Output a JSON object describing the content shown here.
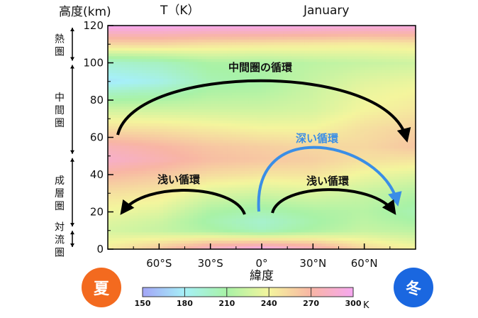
{
  "chart_data": {
    "type": "heatmap",
    "title_left": "T（K）",
    "title_right": "January",
    "ylabel": "高度(km)",
    "xlabel": "緯度",
    "xlim": [
      -90,
      90
    ],
    "ylim": [
      0,
      120
    ],
    "x_ticks": [
      {
        "value": -60,
        "label": "60°S"
      },
      {
        "value": -30,
        "label": "30°S"
      },
      {
        "value": 0,
        "label": "0°"
      },
      {
        "value": 30,
        "label": "30°N"
      },
      {
        "value": 60,
        "label": "60°N"
      }
    ],
    "y_ticks": [
      0,
      20,
      40,
      60,
      80,
      100,
      120
    ],
    "layers": [
      {
        "label": "熱圏",
        "from": 100,
        "to": 120
      },
      {
        "label": "中間圏",
        "from": 50,
        "to": 100
      },
      {
        "label": "成層圏",
        "from": 11,
        "to": 50
      },
      {
        "label": "対流圏",
        "from": 0,
        "to": 11
      }
    ],
    "colorbar": {
      "ticks": [
        150,
        180,
        210,
        240,
        270,
        300
      ],
      "unit": "K",
      "vmin": 150,
      "vmax": 300
    },
    "hemispheres": {
      "summer": "夏",
      "winter": "冬"
    },
    "annotations": [
      {
        "label": "中間圏の循環",
        "color": "#000000"
      },
      {
        "label": "深い循環",
        "color": "#3a8ee6"
      },
      {
        "label": "浅い循環",
        "color": "#000000",
        "side": "south"
      },
      {
        "label": "浅い循環",
        "color": "#000000",
        "side": "north"
      }
    ],
    "profile_altitudes": [
      0,
      10,
      15,
      20,
      30,
      40,
      48,
      55,
      65,
      75,
      85,
      90,
      100,
      110,
      120
    ],
    "temperature_profiles": [
      {
        "lat": -90,
        "values": [
          245,
          228,
          232,
          238,
          250,
          268,
          285,
          277,
          250,
          225,
          195,
          175,
          195,
          255,
          300
        ]
      },
      {
        "lat": -60,
        "values": [
          262,
          222,
          225,
          232,
          246,
          262,
          276,
          270,
          248,
          225,
          200,
          185,
          200,
          255,
          300
        ]
      },
      {
        "lat": -30,
        "values": [
          285,
          212,
          207,
          212,
          230,
          252,
          266,
          262,
          244,
          225,
          212,
          205,
          212,
          250,
          298
        ]
      },
      {
        "lat": 0,
        "values": [
          298,
          200,
          195,
          205,
          226,
          248,
          262,
          258,
          240,
          225,
          214,
          210,
          212,
          248,
          298
        ]
      },
      {
        "lat": 30,
        "values": [
          282,
          212,
          208,
          212,
          230,
          248,
          258,
          254,
          240,
          228,
          224,
          222,
          218,
          246,
          296
        ]
      },
      {
        "lat": 60,
        "values": [
          255,
          222,
          218,
          216,
          222,
          238,
          250,
          254,
          250,
          240,
          236,
          232,
          222,
          244,
          294
        ]
      },
      {
        "lat": 90,
        "values": [
          242,
          218,
          210,
          205,
          215,
          232,
          248,
          262,
          256,
          246,
          240,
          236,
          225,
          246,
          294
        ]
      }
    ]
  }
}
